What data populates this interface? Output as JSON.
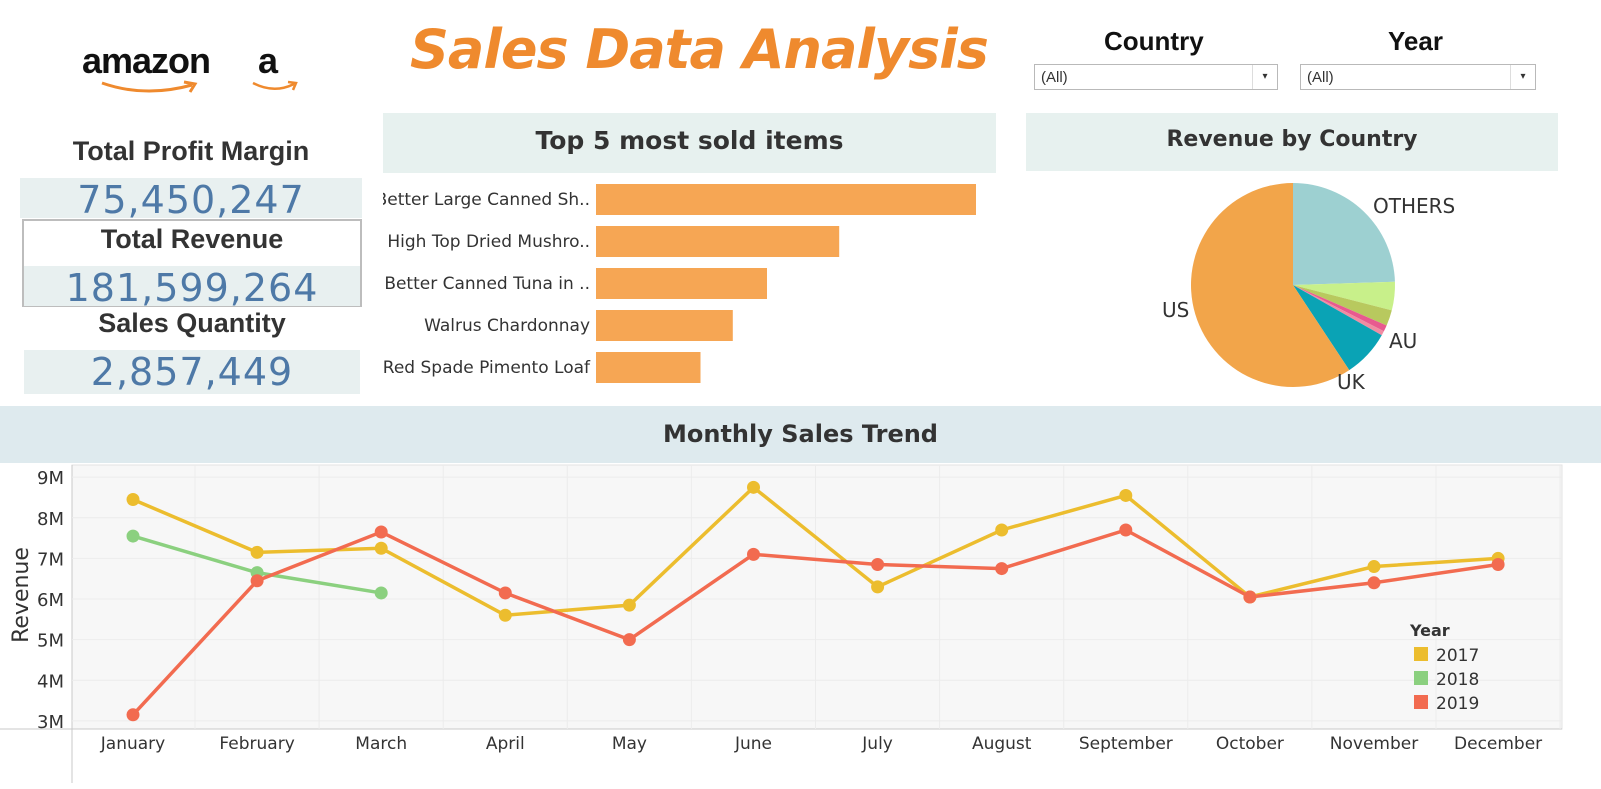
{
  "header": {
    "logo_wordmark": "amazon",
    "logo_letter": "a",
    "title": "Sales Data Analysis"
  },
  "filters": [
    {
      "label": "Country",
      "value": "(All)"
    },
    {
      "label": "Year",
      "value": "(All)"
    }
  ],
  "kpis": {
    "profit_label": "Total Profit Margin",
    "profit_value": "75,450,247",
    "revenue_label": "Total Revenue",
    "revenue_value": "181,599,264",
    "quantity_label": "Sales Quantity",
    "quantity_value": "2,857,449"
  },
  "colors": {
    "accent": "#ef8a2e",
    "bar": "#f6a654",
    "kpi_value": "#4e79a7"
  },
  "chart_data": [
    {
      "type": "bar",
      "title": "Top 5 most sold items",
      "orientation": "horizontal",
      "categories": [
        "Better Large Canned Sh..",
        "High Top Dried Mushro..",
        "Better Canned Tuna in ..",
        "Walrus Chardonnay",
        "Red Spade Pimento Loaf"
      ],
      "values": [
        100,
        64,
        45,
        36,
        27.5
      ]
    },
    {
      "type": "pie",
      "title": "Revenue by Country",
      "labels": [
        "OTHERS",
        "",
        "",
        "",
        "",
        "UK",
        "US"
      ],
      "label_text": {
        "OTHERS": "OTHERS",
        "AU": "AU",
        "UK": "UK",
        "US": "US"
      },
      "values": [
        24.5,
        4.5,
        2.5,
        1.0,
        0.7,
        7.5,
        59.3
      ],
      "colors": [
        "#9dd0d1",
        "#c8f08a",
        "#b8c95e",
        "#e85a8f",
        "#f08ca2",
        "#0aa3b5",
        "#f2a54a"
      ]
    },
    {
      "type": "line",
      "title": "Monthly Sales Trend",
      "xlabel": "",
      "ylabel": "Revenue",
      "x": [
        "January",
        "February",
        "March",
        "April",
        "May",
        "June",
        "July",
        "August",
        "September",
        "October",
        "November",
        "December"
      ],
      "y_ticks": [
        "3M",
        "4M",
        "5M",
        "6M",
        "7M",
        "8M",
        "9M"
      ],
      "ylim": [
        2.8,
        9.3
      ],
      "legend_title": "Year",
      "legend_position": "bottom-right",
      "series": [
        {
          "name": "2017",
          "color": "#ecbd2e",
          "values": [
            8.45,
            7.15,
            7.25,
            5.6,
            5.85,
            8.75,
            6.3,
            7.7,
            8.55,
            6.05,
            6.8,
            7.0
          ]
        },
        {
          "name": "2018",
          "color": "#8bd07f",
          "values": [
            7.55,
            6.65,
            6.15,
            null,
            null,
            null,
            null,
            null,
            null,
            null,
            null,
            null
          ]
        },
        {
          "name": "2019",
          "color": "#f26b50",
          "values": [
            3.15,
            6.45,
            7.65,
            6.15,
            5.0,
            7.1,
            6.85,
            6.75,
            7.7,
            6.05,
            6.4,
            6.85
          ]
        }
      ]
    }
  ]
}
